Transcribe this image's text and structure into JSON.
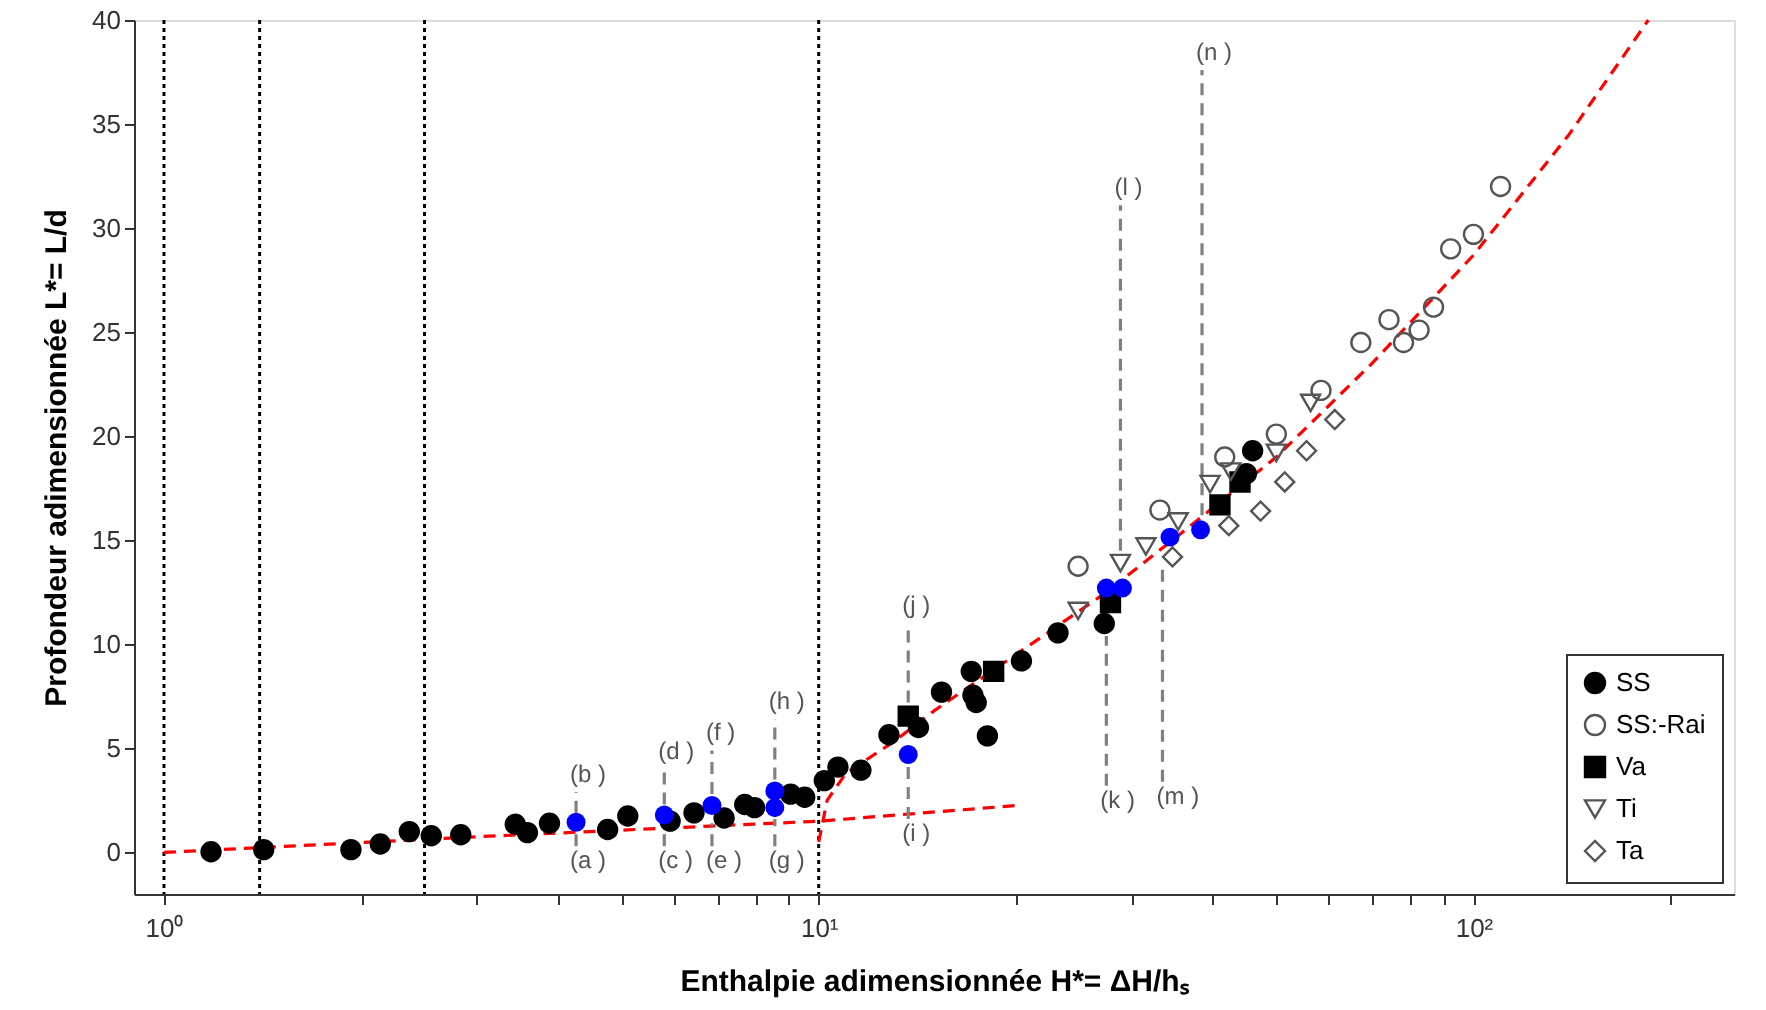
{
  "chart_data": {
    "type": "scatter",
    "xlabel": "Enthalpie adimensionnée H*= ΔH/hₛ",
    "ylabel": "Profondeur adimensionnée L*= L/d",
    "log": "x",
    "xlim": [
      0.9,
      250
    ],
    "ylim": [
      -2,
      40
    ],
    "xticks": [
      {
        "value": 1,
        "label": "10⁰"
      },
      {
        "value": 2,
        "label": null
      },
      {
        "value": 3,
        "label": null
      },
      {
        "value": 4,
        "label": null
      },
      {
        "value": 5,
        "label": null
      },
      {
        "value": 6,
        "label": null
      },
      {
        "value": 7,
        "label": null
      },
      {
        "value": 8,
        "label": null
      },
      {
        "value": 9,
        "label": null
      },
      {
        "value": 10,
        "label": "10¹"
      },
      {
        "value": 20,
        "label": null
      },
      {
        "value": 30,
        "label": null
      },
      {
        "value": 40,
        "label": null
      },
      {
        "value": 50,
        "label": null
      },
      {
        "value": 60,
        "label": null
      },
      {
        "value": 70,
        "label": null
      },
      {
        "value": 80,
        "label": null
      },
      {
        "value": 90,
        "label": null
      },
      {
        "value": 100,
        "label": "10²"
      },
      {
        "value": 200,
        "label": null
      }
    ],
    "yticks": [
      0,
      5,
      10,
      15,
      20,
      25,
      30,
      35,
      40
    ],
    "grid": false,
    "legend": "bottom right",
    "series": [
      {
        "type": "line",
        "color": "#ff0000",
        "line_style": "dashed",
        "x": [
          1,
          3,
          10,
          20
        ],
        "values": [
          0,
          0.75,
          1.5,
          2.25
        ]
      },
      {
        "type": "line",
        "color": "#ff0000",
        "line_style": "dashed",
        "x": [
          10,
          10.3,
          11,
          13,
          15,
          20,
          27.5,
          35,
          50,
          70,
          100,
          140,
          185
        ],
        "values": [
          0.5,
          2.5,
          3.8,
          5.3,
          6.8,
          9.5,
          12.5,
          15.1,
          19,
          23.5,
          28.7,
          34.5,
          40
        ]
      },
      {
        "type": "line",
        "color": "#808080",
        "line_style": "dashed",
        "x": [
          4.26,
          4.26
        ],
        "values": [
          0.3,
          1.0
        ]
      },
      {
        "type": "line",
        "color": "#808080",
        "line_style": "dashed",
        "x": [
          5.81,
          5.81
        ],
        "values": [
          0.3,
          1.2
        ]
      },
      {
        "type": "line",
        "color": "#808080",
        "line_style": "dashed",
        "x": [
          6.87,
          6.87
        ],
        "values": [
          0.3,
          1.4
        ]
      },
      {
        "type": "line",
        "color": "#808080",
        "line_style": "dashed",
        "x": [
          8.57,
          8.57
        ],
        "values": [
          0.3,
          1.6
        ]
      },
      {
        "type": "line",
        "color": "#808080",
        "line_style": "dashed",
        "x": [
          4.26,
          4.26
        ],
        "values": [
          1.9,
          2.9
        ]
      },
      {
        "type": "line",
        "color": "#808080",
        "line_style": "dashed",
        "x": [
          5.81,
          5.81
        ],
        "values": [
          2.3,
          4.0
        ]
      },
      {
        "type": "line",
        "color": "#808080",
        "line_style": "dashed",
        "x": [
          6.87,
          6.87
        ],
        "values": [
          2.8,
          4.9
        ]
      },
      {
        "type": "line",
        "color": "#808080",
        "line_style": "dashed",
        "x": [
          8.57,
          8.57
        ],
        "values": [
          3.5,
          6.4
        ]
      },
      {
        "type": "line",
        "color": "#808080",
        "line_style": "dashed",
        "x": [
          13.7,
          13.7
        ],
        "values": [
          1.6,
          4.1
        ]
      },
      {
        "type": "line",
        "color": "#808080",
        "line_style": "dashed",
        "x": [
          13.7,
          13.7
        ],
        "values": [
          7.2,
          11.0
        ]
      },
      {
        "type": "line",
        "color": "#808080",
        "line_style": "dashed",
        "x": [
          27.5,
          27.5
        ],
        "values": [
          3.2,
          10.4
        ]
      },
      {
        "type": "line",
        "color": "#808080",
        "line_style": "dashed",
        "x": [
          28.9,
          28.9
        ],
        "values": [
          14.5,
          31.1
        ]
      },
      {
        "type": "line",
        "color": "#808080",
        "line_style": "dashed",
        "x": [
          33.5,
          33.5
        ],
        "values": [
          3.4,
          13.6
        ]
      },
      {
        "type": "line",
        "color": "#808080",
        "line_style": "dashed",
        "x": [
          38.5,
          38.5
        ],
        "values": [
          16.2,
          37.6
        ]
      },
      {
        "name": "SS",
        "marker": "circle",
        "color": "#000000",
        "x": [
          1.18,
          1.42,
          1.93,
          2.14,
          2.37,
          2.56,
          2.84,
          3.44,
          3.59,
          3.88,
          4.76,
          5.11,
          5.93,
          6.45,
          7.17,
          7.71,
          7.98,
          9.06,
          9.52,
          10.2,
          10.7,
          11.6,
          12.8,
          14.2,
          15.4,
          17.1,
          17.2,
          17.4,
          18.1,
          20.4,
          23.2,
          27.3,
          45,
          46
        ],
        "values": [
          0.03,
          0.13,
          0.13,
          0.4,
          1.0,
          0.8,
          0.85,
          1.35,
          0.95,
          1.4,
          1.1,
          1.75,
          1.5,
          1.9,
          1.65,
          2.3,
          2.15,
          2.8,
          2.65,
          3.45,
          4.1,
          3.95,
          5.65,
          6.0,
          7.7,
          8.7,
          7.55,
          7.2,
          5.6,
          9.2,
          10.55,
          11.0,
          18.2,
          19.3
        ]
      },
      {
        "name": "SS:-Rai",
        "marker": "circle",
        "color": "#555555",
        "x": [
          24.9,
          33.2,
          41.7,
          50,
          58.5,
          67.3,
          74.3,
          78.2,
          82.6,
          86.9,
          92.3,
          100,
          110
        ],
        "values": [
          13.75,
          16.45,
          19.0,
          20.1,
          22.2,
          24.5,
          25.6,
          24.5,
          25.1,
          26.2,
          29.0,
          29.7,
          32.0
        ]
      },
      {
        "name": "Va",
        "marker": "square",
        "color": "#000000",
        "x": [
          13.7,
          18.5,
          27.9,
          41,
          44
        ],
        "values": [
          6.55,
          8.7,
          12.0,
          16.7,
          17.8
        ]
      },
      {
        "name": "Ti",
        "marker": "triangle",
        "color": "#555555",
        "x": [
          24.9,
          28.9,
          31.6,
          35.4,
          39.6,
          42.6,
          50,
          56.4
        ],
        "values": [
          11.6,
          13.9,
          14.7,
          15.9,
          17.7,
          18.3,
          19.2,
          21.6
        ]
      },
      {
        "name": "Ta",
        "marker": "diamond",
        "color": "#555555",
        "x": [
          34.7,
          42.3,
          47.3,
          51.5,
          55.6,
          61.4
        ],
        "values": [
          14.2,
          15.7,
          16.4,
          17.8,
          19.3,
          20.8
        ]
      },
      {
        "marker": "circle",
        "color": "#0000ff",
        "x": [
          4.26,
          5.81,
          6.87,
          8.57,
          8.57,
          13.7,
          27.5,
          29.1,
          34.4,
          38.3
        ],
        "values": [
          1.45,
          1.8,
          2.25,
          2.95,
          2.15,
          4.7,
          12.7,
          12.7,
          15.15,
          15.5
        ]
      }
    ],
    "ref_lines": [
      {
        "axis": "x",
        "value": 1,
        "color": "#000000",
        "line_style": "dotted"
      },
      {
        "axis": "x",
        "value": 1.4,
        "color": "#000000",
        "line_style": "dotted"
      },
      {
        "axis": "x",
        "value": 2.5,
        "color": "#000000",
        "line_style": "dotted"
      },
      {
        "axis": "x",
        "value": 10,
        "color": "#000000",
        "line_style": "dotted"
      }
    ],
    "annotations": [
      {
        "text": "(a )",
        "x": 4.26,
        "y": 0.3
      },
      {
        "text": "(b )",
        "x": 4.26,
        "y": 2.9
      },
      {
        "text": "(c )",
        "x": 5.81,
        "y": 0.3
      },
      {
        "text": "(d )",
        "x": 5.81,
        "y": 4.0
      },
      {
        "text": "(e )",
        "x": 6.87,
        "y": 0.3
      },
      {
        "text": "(f )",
        "x": 6.87,
        "y": 4.9
      },
      {
        "text": "(g )",
        "x": 8.57,
        "y": 0.3
      },
      {
        "text": "(h )",
        "x": 8.57,
        "y": 6.4
      },
      {
        "text": "(i )",
        "x": 13.7,
        "y": 1.6
      },
      {
        "text": "(j )",
        "x": 13.7,
        "y": 11.0
      },
      {
        "text": "(k )",
        "x": 27.5,
        "y": 3.2
      },
      {
        "text": "(l )",
        "x": 28.9,
        "y": 31.1
      },
      {
        "text": "(m )",
        "x": 33.5,
        "y": 3.4
      },
      {
        "text": "(n )",
        "x": 38.5,
        "y": 37.6
      }
    ]
  }
}
